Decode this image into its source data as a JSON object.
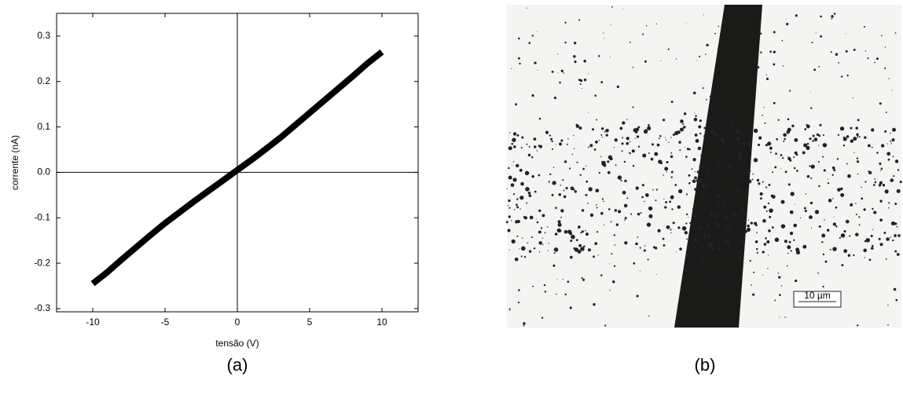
{
  "chart_data": {
    "type": "line",
    "xlabel": "tensão (V)",
    "ylabel": "corrente (nA)",
    "caption": "(a)",
    "x": [
      -10,
      -9,
      -8,
      -7,
      -6,
      -5,
      -4,
      -3,
      -2,
      -1,
      0,
      1,
      2,
      3,
      4,
      5,
      6,
      7,
      8,
      9,
      10
    ],
    "values": [
      -0.245,
      -0.22,
      -0.192,
      -0.165,
      -0.138,
      -0.112,
      -0.088,
      -0.064,
      -0.041,
      -0.018,
      0.005,
      0.028,
      0.052,
      0.077,
      0.104,
      0.131,
      0.158,
      0.185,
      0.212,
      0.24,
      0.265
    ],
    "color": "#000000",
    "xlim": [
      -12.5,
      12.5
    ],
    "ylim": [
      -0.307,
      0.35
    ],
    "xticks": [
      -10,
      -5,
      0,
      5,
      10
    ],
    "yticks": [
      -0.3,
      -0.2,
      -0.1,
      {
        "value": 0,
        "label": "0.0"
      },
      0.1,
      0.2,
      0.3
    ]
  },
  "image_panel": {
    "caption": "(b)",
    "scale_bar": "10 µm"
  }
}
